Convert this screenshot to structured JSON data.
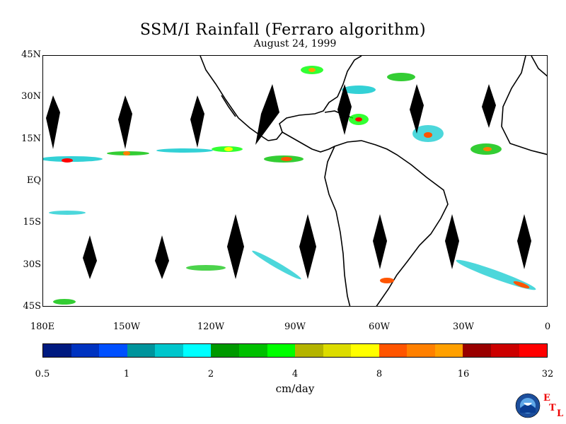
{
  "title": "SSM/I Rainfall (Ferraro algorithm)",
  "date": "August 24, 1999",
  "y_axis": {
    "labels": [
      "45N",
      "30N",
      "15N",
      "EQ",
      "15S",
      "30S",
      "45S"
    ],
    "values": [
      45,
      30,
      15,
      0,
      -15,
      -30,
      -45
    ]
  },
  "x_axis": {
    "labels": [
      "180E",
      "150W",
      "120W",
      "90W",
      "60W",
      "30W",
      "0"
    ],
    "values": [
      -180,
      -150,
      -120,
      -90,
      -60,
      -30,
      0
    ]
  },
  "colorbar": {
    "colors": [
      "#001a80",
      "#0033c0",
      "#0050ff",
      "#00949c",
      "#00c6cc",
      "#00ffff",
      "#009900",
      "#00c000",
      "#00ff00",
      "#b4b400",
      "#dcdc00",
      "#ffff00",
      "#ff5500",
      "#ff8000",
      "#ffa000",
      "#990000",
      "#cc0000",
      "#ff0000"
    ],
    "tick_labels": [
      "0.5",
      "1",
      "2",
      "4",
      "8",
      "16",
      "32"
    ],
    "units": "cm/day"
  },
  "logo": {
    "name": "NOAA",
    "letters": [
      "E",
      "T",
      "L"
    ]
  }
}
